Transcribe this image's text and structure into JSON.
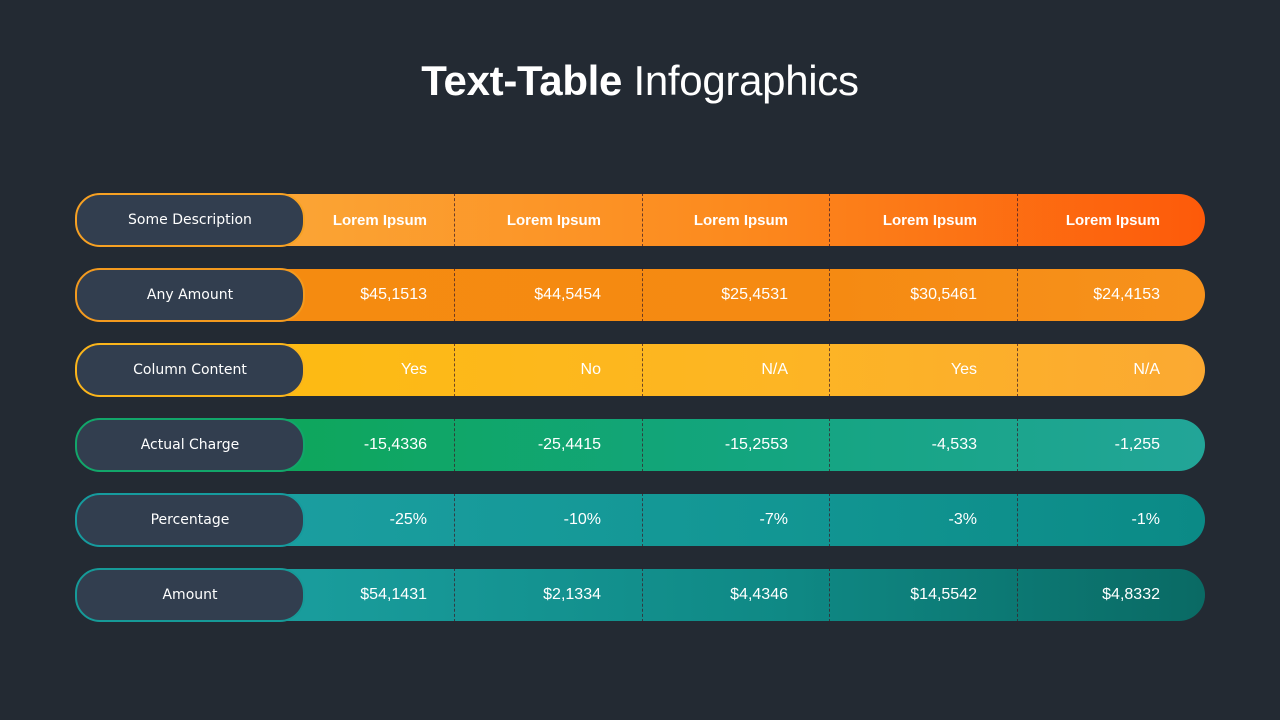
{
  "title": {
    "bold": "Text-Table",
    "light": "Infographics"
  },
  "rows": [
    {
      "label": "Some Description",
      "cells": [
        "Lorem Ipsum",
        "Lorem Ipsum",
        "Lorem Ipsum",
        "Lorem Ipsum",
        "Lorem Ipsum"
      ]
    },
    {
      "label": "Any Amount",
      "cells": [
        "$45,1513",
        "$44,5454",
        "$25,4531",
        "$30,5461",
        "$24,4153"
      ]
    },
    {
      "label": "Column Content",
      "cells": [
        "Yes",
        "No",
        "N/A",
        "Yes",
        "N/A"
      ]
    },
    {
      "label": "Actual Charge",
      "cells": [
        "-15,4336",
        "-25,4415",
        "-15,2553",
        "-4,533",
        "-1,255"
      ]
    },
    {
      "label": "Percentage",
      "cells": [
        "-25%",
        "-10%",
        "-7%",
        "-3%",
        "-1%"
      ]
    },
    {
      "label": "Amount",
      "cells": [
        "$54,1431",
        "$2,1334",
        "$4,4346",
        "$14,5542",
        "$4,8332"
      ]
    }
  ],
  "colors": {
    "background": "#232a33",
    "label_pill": "#323e4f",
    "orange_header": "#fc8a1e",
    "orange": "#f58b10",
    "amber": "#fdb524",
    "green": "#13a57e",
    "teal": "#129693",
    "dark_teal": "#0f8985"
  }
}
